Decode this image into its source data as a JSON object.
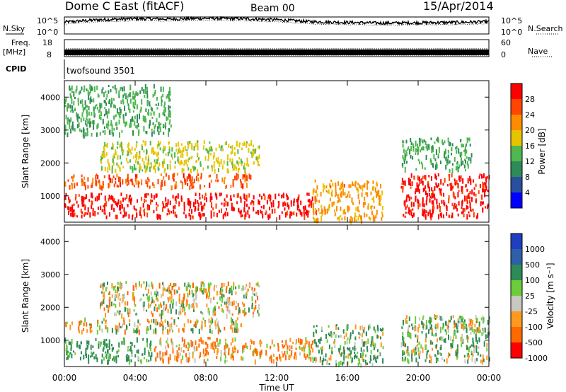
{
  "header": {
    "station": "Dome C East (fitACF)",
    "beam": "Beam 00",
    "date": "15/Apr/2014"
  },
  "nsky": {
    "label": "N.Sky",
    "tick_top": "10^5",
    "tick_bottom": "10^0",
    "right_tick_top": "10^5",
    "right_tick_bottom": "10^0",
    "right_label": "N.Search"
  },
  "freq": {
    "label_line1": "Freq.",
    "label_line2": "[MHz]",
    "tick_top": "18",
    "tick_bottom": "8",
    "right_tick_top": "60",
    "right_tick_bottom": "0",
    "right_label": "Nave"
  },
  "cpid": {
    "label": "CPID",
    "value": "twofsound 3501"
  },
  "power_panel": {
    "ylabel": "Slant Range [km]",
    "yticks": [
      "1000",
      "2000",
      "3000",
      "4000"
    ],
    "colorbar_label": "Power [dB]",
    "colorbar_ticks": [
      "4",
      "8",
      "12",
      "16",
      "20",
      "24",
      "28"
    ]
  },
  "velocity_panel": {
    "ylabel": "Slant Range [km]",
    "yticks": [
      "1000",
      "2000",
      "3000",
      "4000"
    ],
    "colorbar_label": "Velocity [m s⁻¹]",
    "colorbar_ticks": [
      "1000",
      "500",
      "100",
      "25",
      "-25",
      "-100",
      "-500",
      "-1000"
    ]
  },
  "xaxis": {
    "label": "Time UT",
    "ticks": [
      "00:00",
      "04:00",
      "08:00",
      "12:00",
      "16:00",
      "20:00",
      "00:00"
    ]
  },
  "colors": {
    "power_scale": [
      "#0000ff",
      "#2a4ea0",
      "#2e8b57",
      "#4fb84f",
      "#e8c400",
      "#ff8c00",
      "#ff4500",
      "#ff0000"
    ],
    "velocity_scale": [
      "#1f3fbf",
      "#2e5fa8",
      "#2e8b57",
      "#6ccc3a",
      "#c8c8c0",
      "#ff9a1f",
      "#ff6a00",
      "#ff0000"
    ]
  },
  "chart_data": [
    {
      "type": "line",
      "title": "N.Sky / N.Search",
      "x": [
        0,
        2,
        4,
        6,
        8,
        10,
        12,
        14,
        16,
        18,
        20,
        22,
        24
      ],
      "series": [
        {
          "values": [
            3.5,
            4.2,
            4.5,
            4.4,
            4.6,
            4.5,
            4.2,
            3.6,
            3.4,
            3.2,
            3.3,
            3.4,
            3.6
          ]
        }
      ],
      "ylim": [
        0,
        5
      ]
    },
    {
      "type": "line",
      "title": "Freq / Nave",
      "x": [
        0,
        24
      ],
      "series": [
        {
          "values": [
            10.5,
            10.5
          ]
        }
      ],
      "ylim": [
        8,
        18
      ]
    },
    {
      "type": "heatmap",
      "title": "Power",
      "xlabel": "Time UT",
      "ylabel": "Slant Range [km]",
      "ylim": [
        200,
        4500
      ],
      "xlim": [
        0,
        24
      ],
      "zlabel": "Power [dB]",
      "zlim": [
        0,
        30
      ],
      "regions": [
        {
          "t": [
            0,
            14
          ],
          "range": [
            400,
            1100
          ],
          "value": 28
        },
        {
          "t": [
            0,
            10.5
          ],
          "range": [
            1300,
            1700
          ],
          "value": 24
        },
        {
          "t": [
            2,
            11
          ],
          "range": [
            1800,
            2700
          ],
          "value": 16
        },
        {
          "t": [
            14,
            18
          ],
          "range": [
            300,
            1500
          ],
          "value": 20
        },
        {
          "t": [
            19,
            24
          ],
          "range": [
            400,
            1700
          ],
          "value": 28
        },
        {
          "t": [
            19,
            23
          ],
          "range": [
            1800,
            2800
          ],
          "value": 12
        },
        {
          "t": [
            0,
            6
          ],
          "range": [
            2900,
            4400
          ],
          "value": 12
        }
      ]
    },
    {
      "type": "heatmap",
      "title": "Velocity",
      "xlabel": "Time UT",
      "ylabel": "Slant Range [km]",
      "ylim": [
        200,
        4500
      ],
      "xlim": [
        0,
        24
      ],
      "zlabel": "Velocity [m s⁻¹]",
      "zlim": [
        -1000,
        1000
      ],
      "regions": [
        {
          "t": [
            0,
            5
          ],
          "range": [
            400,
            1100
          ],
          "value": 200
        },
        {
          "t": [
            5,
            14
          ],
          "range": [
            400,
            1100
          ],
          "value": -100
        },
        {
          "t": [
            0,
            10
          ],
          "range": [
            1300,
            1700
          ],
          "value": 0
        },
        {
          "t": [
            2,
            11
          ],
          "range": [
            1800,
            2800
          ],
          "value": 0
        },
        {
          "t": [
            14,
            18
          ],
          "range": [
            300,
            1500
          ],
          "value": 100
        },
        {
          "t": [
            19,
            24
          ],
          "range": [
            400,
            1800
          ],
          "value": 100
        },
        {
          "t": [
            22,
            24
          ],
          "range": [
            1300,
            1700
          ],
          "value": 0
        }
      ]
    }
  ]
}
